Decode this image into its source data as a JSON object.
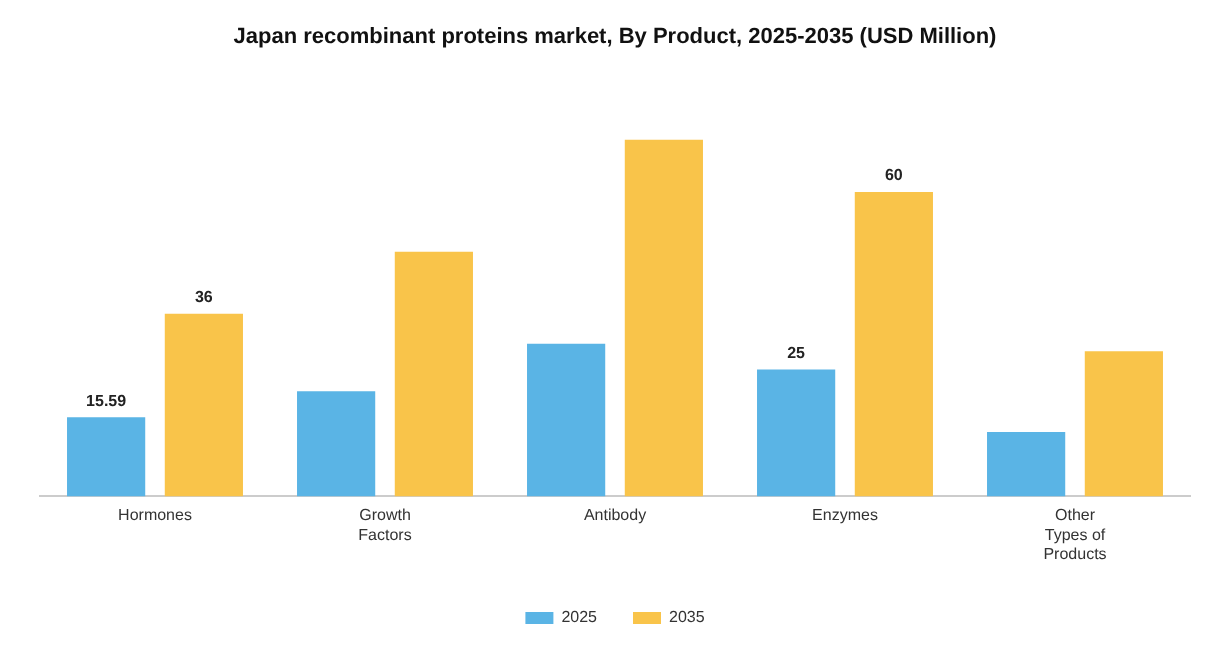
{
  "chart_data": {
    "type": "bar",
    "title": "Japan recombinant proteins market, By Product, 2025-2035 (USD Million)",
    "categories": [
      "Hormones",
      "Growth Factors",
      "Antibody",
      "Enzymes",
      "Other Types of Products"
    ],
    "series": [
      {
        "name": "2025",
        "color": "#5ab4e5",
        "values": [
          15.59,
          20.7,
          30.1,
          25,
          12.7
        ],
        "value_labels": [
          "15.59",
          null,
          null,
          "25",
          null
        ]
      },
      {
        "name": "2035",
        "color": "#f9c44a",
        "values": [
          36,
          48.2,
          70.3,
          60,
          28.6
        ],
        "value_labels": [
          "36",
          null,
          null,
          "60",
          null
        ]
      }
    ],
    "legend": "bottom",
    "grid": false
  }
}
